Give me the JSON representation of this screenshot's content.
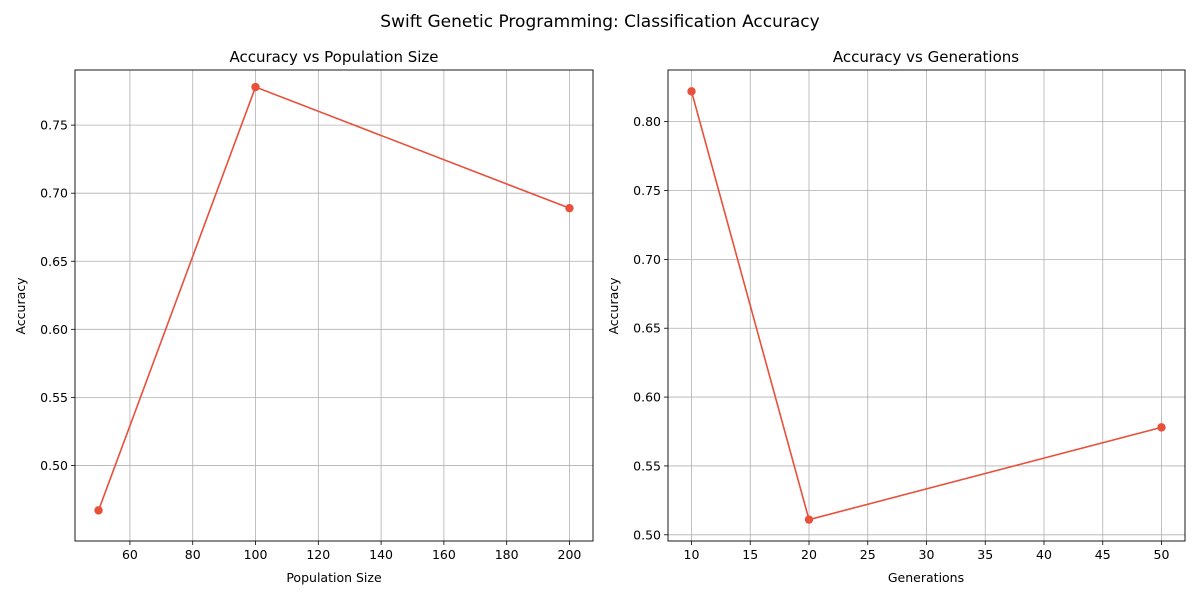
{
  "figure": {
    "suptitle": "Swift Genetic Programming: Classification Accuracy"
  },
  "chart_data": [
    {
      "type": "line",
      "title": "Accuracy vs Population Size",
      "xlabel": "Population Size",
      "ylabel": "Accuracy",
      "x": [
        50,
        100,
        200
      ],
      "series": [
        {
          "values": [
            0.467,
            0.778,
            0.689
          ]
        }
      ],
      "xlim": [
        42.5,
        207.5
      ],
      "ylim": [
        0.4445,
        0.7905
      ],
      "xticks": [
        60,
        80,
        100,
        120,
        140,
        160,
        180,
        200
      ],
      "yticks": [
        0.5,
        0.55,
        0.6,
        0.65,
        0.7,
        0.75
      ],
      "tick_decimals_x": 0,
      "tick_decimals_y": 2,
      "grid": true,
      "line_color": "#e8503a",
      "marker": "circle"
    },
    {
      "type": "line",
      "title": "Accuracy vs Generations",
      "xlabel": "Generations",
      "ylabel": "Accuracy",
      "x": [
        10,
        20,
        50
      ],
      "series": [
        {
          "values": [
            0.822,
            0.511,
            0.578
          ]
        }
      ],
      "xlim": [
        8.0,
        52.0
      ],
      "ylim": [
        0.4955,
        0.8375
      ],
      "xticks": [
        10,
        15,
        20,
        25,
        30,
        35,
        40,
        45,
        50
      ],
      "yticks": [
        0.5,
        0.55,
        0.6,
        0.65,
        0.7,
        0.75,
        0.8
      ],
      "tick_decimals_x": 0,
      "tick_decimals_y": 2,
      "grid": true,
      "line_color": "#e8503a",
      "marker": "circle"
    }
  ]
}
